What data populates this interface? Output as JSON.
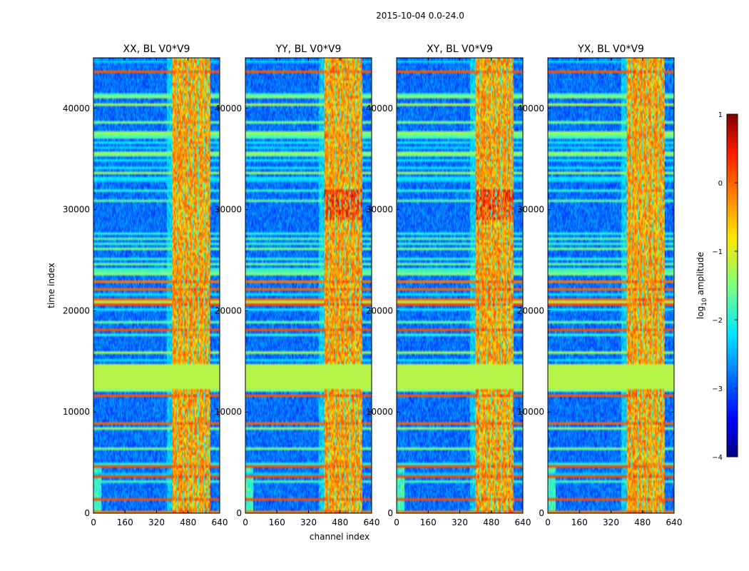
{
  "chart_data": {
    "type": "heatmap",
    "suptitle": "2015-10-04 0.0-24.0",
    "xlabel": "channel index",
    "ylabel": "time index",
    "xlim": [
      0,
      640
    ],
    "ylim": [
      0,
      45000
    ],
    "x_ticks": [
      0,
      160,
      320,
      480,
      640
    ],
    "y_ticks": [
      0,
      10000,
      20000,
      30000,
      40000
    ],
    "panels": [
      {
        "title": "XX, BL V0*V9"
      },
      {
        "title": "YY, BL V0*V9"
      },
      {
        "title": "XY, BL V0*V9"
      },
      {
        "title": "YX, BL V0*V9"
      }
    ],
    "colorbar": {
      "label_main": "log",
      "label_sub": "10",
      "label_rest": " amplitude",
      "range": [
        -4,
        1
      ],
      "ticks": [
        1,
        0,
        -1,
        -2,
        -3,
        -4
      ],
      "tick_labels": [
        "1",
        "0",
        "−1",
        "−2",
        "−3",
        "−4"
      ],
      "colormap": "jet"
    },
    "features": {
      "rfi_band_channels": [
        400,
        590
      ],
      "flagged_time_range": [
        12300,
        14800
      ],
      "flagged_value": -1.2
    }
  }
}
